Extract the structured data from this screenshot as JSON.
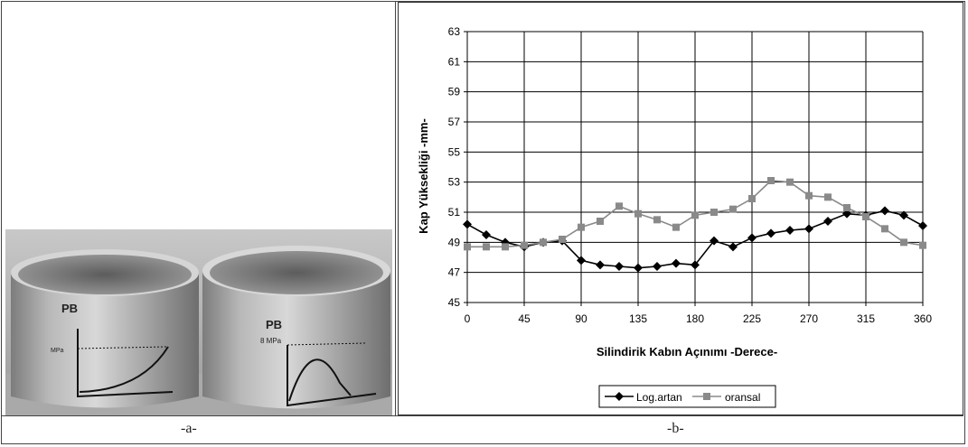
{
  "captions": {
    "a": "-a-",
    "b": "-b-"
  },
  "photo": {
    "left_cup_marks": {
      "label": "PB",
      "sub": "MPa"
    },
    "right_cup_marks": {
      "label": "PB",
      "sub": "8 MPa"
    }
  },
  "chart_data": {
    "type": "line",
    "xlabel": "Silindirik Kabın Açınımı -Derece-",
    "ylabel": "Kap Yüksekliği -mm-",
    "xlim": [
      0,
      360
    ],
    "ylim": [
      45,
      63
    ],
    "xticks": [
      0,
      45,
      90,
      135,
      180,
      225,
      270,
      315,
      360
    ],
    "yticks": [
      45,
      47,
      49,
      51,
      53,
      55,
      57,
      59,
      61,
      63
    ],
    "grid": true,
    "legend_position": "bottom-center",
    "x": [
      0,
      15,
      30,
      45,
      60,
      75,
      90,
      105,
      120,
      135,
      150,
      165,
      180,
      195,
      210,
      225,
      240,
      255,
      270,
      285,
      300,
      315,
      330,
      345,
      360
    ],
    "series": [
      {
        "name": "Log.artan",
        "marker": "diamond",
        "color": "#000000",
        "values": [
          50.2,
          49.5,
          49.0,
          48.7,
          49.0,
          49.1,
          47.8,
          47.5,
          47.4,
          47.3,
          47.4,
          47.6,
          47.5,
          49.1,
          48.7,
          49.3,
          49.6,
          49.8,
          49.9,
          50.4,
          50.9,
          50.8,
          51.1,
          50.8,
          50.1
        ]
      },
      {
        "name": "oransal",
        "marker": "square",
        "color": "#8a8a8a",
        "values": [
          48.7,
          48.7,
          48.7,
          48.8,
          49.0,
          49.2,
          50.0,
          50.4,
          51.4,
          50.9,
          50.5,
          50.0,
          50.8,
          51.0,
          51.2,
          51.9,
          53.1,
          53.0,
          52.1,
          52.0,
          51.3,
          50.7,
          49.9,
          49.0,
          48.8
        ]
      }
    ]
  }
}
